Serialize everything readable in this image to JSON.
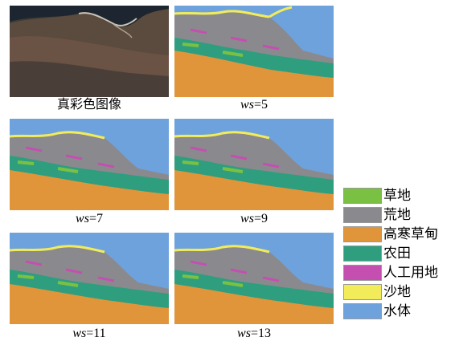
{
  "captions": {
    "true_color": "真彩色图像",
    "ws_prefix": "ws",
    "ws5": "=5",
    "ws7": "=7",
    "ws9": "=9",
    "ws11": "=11",
    "ws13": "=13"
  },
  "legend": [
    {
      "label": "草地",
      "color": "#7ac143"
    },
    {
      "label": "荒地",
      "color": "#8a8a8e"
    },
    {
      "label": "高寒草甸",
      "color": "#e0953a"
    },
    {
      "label": "农田",
      "color": "#2e9e7e"
    },
    {
      "label": "人工用地",
      "color": "#c44fb0"
    },
    {
      "label": "沙地",
      "color": "#f2ec5a"
    },
    {
      "label": "水体",
      "color": "#6ea2dc"
    }
  ]
}
